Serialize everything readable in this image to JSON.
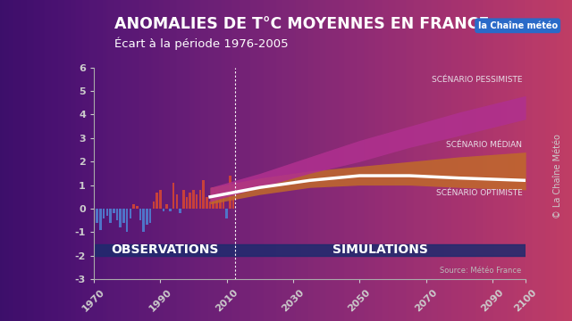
{
  "chart_data": {
    "type": "combo",
    "title": "ANOMALIES DE T°C MOYENNES EN FRANCE",
    "subtitle": "Écart à la période 1976-2005",
    "logo": "la Chaîne météo",
    "credit": "© La Chaîne Météo",
    "source": "Source: Météo France",
    "annotation": "SIMULATIONS",
    "xlim": [
      1970,
      2100
    ],
    "xticks": [
      1970,
      1990,
      2010,
      2030,
      2050,
      2070,
      2090,
      2100
    ],
    "ylim": [
      -3,
      6
    ],
    "yticks": [
      -3,
      -2,
      -1,
      0,
      1,
      2,
      3,
      4,
      5,
      6
    ],
    "grid": false,
    "series": [
      {
        "name": "OBSERVATIONS",
        "type": "bar",
        "x": [
          1970,
          1971,
          1972,
          1973,
          1974,
          1975,
          1976,
          1977,
          1978,
          1979,
          1980,
          1981,
          1982,
          1983,
          1984,
          1985,
          1986,
          1987,
          1988,
          1989,
          1990,
          1991,
          1992,
          1993,
          1994,
          1995,
          1996,
          1997,
          1998,
          1999,
          2000,
          2001,
          2002,
          2003,
          2004,
          2005,
          2006,
          2007,
          2008,
          2009,
          2010,
          2011,
          2012
        ],
        "values": [
          -0.5,
          -0.6,
          -0.9,
          -0.4,
          -0.3,
          -0.6,
          -0.2,
          -0.5,
          -0.8,
          -0.6,
          -1.0,
          -0.4,
          0.2,
          0.1,
          -0.5,
          -1.0,
          -0.7,
          -0.6,
          0.3,
          0.7,
          0.8,
          -0.1,
          0.2,
          -0.1,
          1.1,
          0.6,
          -0.2,
          0.8,
          0.5,
          0.7,
          0.8,
          0.6,
          0.8,
          1.2,
          0.5,
          0.3,
          0.9,
          0.9,
          0.4,
          0.8,
          -0.4,
          1.4,
          0.5
        ],
        "colors": [
          "#4f74c8",
          "#4f74c8",
          "#4f74c8",
          "#4f74c8",
          "#4f74c8",
          "#4f74c8",
          "#4f74c8",
          "#4f74c8",
          "#4f74c8",
          "#4f74c8",
          "#4f74c8",
          "#4f74c8",
          "#c8413a",
          "#c8413a",
          "#4f74c8",
          "#4f74c8",
          "#4f74c8",
          "#4f74c8",
          "#c8413a",
          "#c8413a",
          "#c8413a",
          "#4f74c8",
          "#c8413a",
          "#4f74c8",
          "#c8413a",
          "#c8413a",
          "#4f74c8",
          "#c8413a",
          "#c8413a",
          "#c8413a",
          "#c8413a",
          "#c8413a",
          "#c8413a",
          "#c8413a",
          "#c8413a",
          "#c8413a",
          "#c8413a",
          "#c8413a",
          "#c8413a",
          "#c8413a",
          "#4f74c8",
          "#c8413a",
          "#c8413a"
        ]
      },
      {
        "name": "SCÉNARIO MÉDIAN",
        "type": "area",
        "color": "#c0692a",
        "x": [
          2005,
          2020,
          2035,
          2050,
          2065,
          2080,
          2100
        ],
        "lower": [
          0.2,
          0.6,
          0.9,
          1.0,
          1.0,
          0.9,
          0.8
        ],
        "upper": [
          0.9,
          1.3,
          1.6,
          1.8,
          2.0,
          2.2,
          2.4
        ]
      },
      {
        "name": "SCÉNARIO PESSIMISTE",
        "type": "area",
        "color": "#b0308f",
        "x": [
          2005,
          2020,
          2035,
          2050,
          2065,
          2080,
          2100
        ],
        "lower": [
          0.3,
          0.9,
          1.5,
          2.0,
          2.6,
          3.1,
          3.8
        ],
        "upper": [
          0.9,
          1.5,
          2.2,
          2.9,
          3.5,
          4.1,
          4.8
        ]
      },
      {
        "name": "SCÉNARIO OPTIMISTE",
        "type": "line",
        "color": "#ffffff",
        "x": [
          2005,
          2020,
          2035,
          2050,
          2065,
          2080,
          2100
        ],
        "values": [
          0.5,
          0.9,
          1.2,
          1.4,
          1.4,
          1.3,
          1.2
        ]
      }
    ]
  }
}
